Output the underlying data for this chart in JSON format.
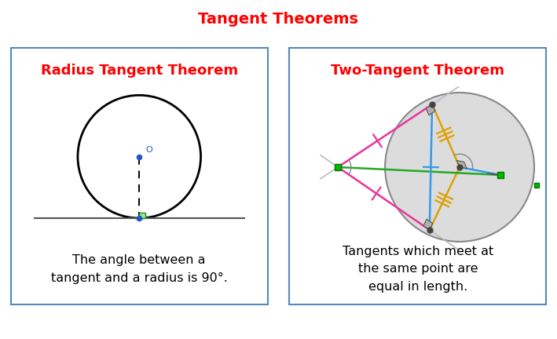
{
  "title": "Tangent Theorems",
  "title_color": "#FF0000",
  "title_fontsize": 14,
  "left_panel_title": "Radius Tangent Theorem",
  "right_panel_title": "Two-Tangent Theorem",
  "left_caption": "The angle between a\ntangent and a radius is 90°.",
  "right_caption": "Tangents which meet at\nthe same point are\nequal in length.",
  "panel_border": "#5588BB",
  "caption_fontsize": 11.5,
  "panel_title_color": "#FF0000",
  "panel_title_fontsize": 13,
  "background": "#FFFFFF"
}
